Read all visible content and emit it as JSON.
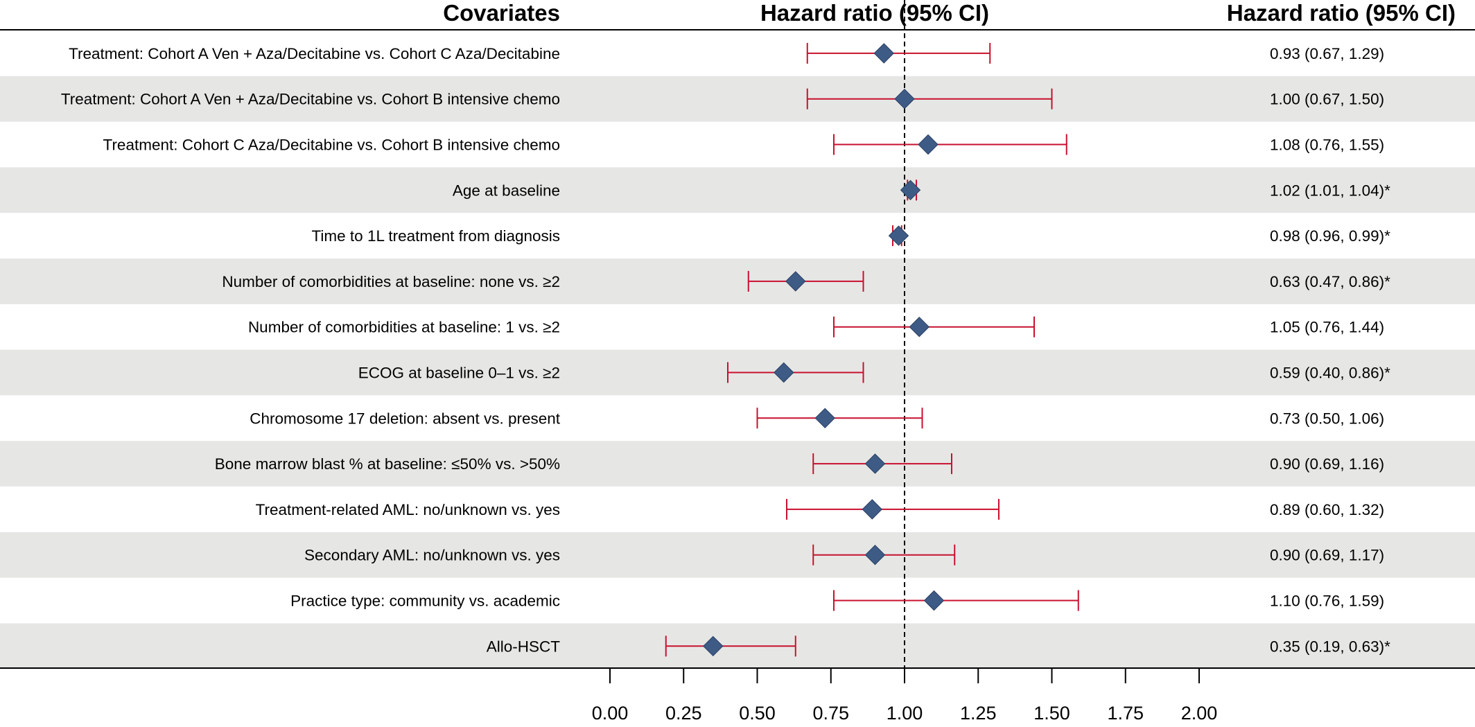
{
  "headers": {
    "covariates": "Covariates",
    "plot": "Hazard ratio (95% CI)",
    "values": "Hazard ratio (95% CI)"
  },
  "colors": {
    "band": "#e6e7e5",
    "ci_line": "#c8102e",
    "marker": "#3e5b86",
    "marker_edge": "#2a3f61",
    "reference_line": "#000000"
  },
  "chart_data": {
    "type": "forest",
    "reference_value": 1.0,
    "xlim": [
      0.0,
      2.0
    ],
    "x_ticks": [
      0.0,
      0.25,
      0.5,
      0.75,
      1.0,
      1.25,
      1.5,
      1.75,
      2.0
    ],
    "x_tick_labels": [
      "0.00",
      "0.25",
      "0.50",
      "0.75",
      "1.00",
      "1.25",
      "1.50",
      "1.75",
      "2.00"
    ],
    "rows": [
      {
        "label": "Treatment: Cohort A Ven + Aza/Decitabine vs. Cohort C Aza/Decitabine",
        "hr": 0.93,
        "lower": 0.67,
        "upper": 1.29,
        "text": "0.93 (0.67, 1.29)"
      },
      {
        "label": "Treatment: Cohort A Ven + Aza/Decitabine vs. Cohort B intensive chemo",
        "hr": 1.0,
        "lower": 0.67,
        "upper": 1.5,
        "text": "1.00 (0.67, 1.50)"
      },
      {
        "label": "Treatment: Cohort C Aza/Decitabine vs. Cohort B intensive chemo",
        "hr": 1.08,
        "lower": 0.76,
        "upper": 1.55,
        "text": "1.08 (0.76, 1.55)"
      },
      {
        "label": "Age at baseline",
        "hr": 1.02,
        "lower": 1.01,
        "upper": 1.04,
        "text": "1.02 (1.01, 1.04)*"
      },
      {
        "label": "Time to 1L treatment from diagnosis",
        "hr": 0.98,
        "lower": 0.96,
        "upper": 0.99,
        "text": "0.98 (0.96, 0.99)*"
      },
      {
        "label": "Number of comorbidities at baseline: none vs. ≥2",
        "hr": 0.63,
        "lower": 0.47,
        "upper": 0.86,
        "text": "0.63 (0.47, 0.86)*"
      },
      {
        "label": "Number of comorbidities at baseline: 1 vs. ≥2",
        "hr": 1.05,
        "lower": 0.76,
        "upper": 1.44,
        "text": "1.05 (0.76, 1.44)"
      },
      {
        "label": "ECOG at baseline 0–1 vs. ≥2",
        "hr": 0.59,
        "lower": 0.4,
        "upper": 0.86,
        "text": "0.59 (0.40, 0.86)*"
      },
      {
        "label": "Chromosome 17 deletion: absent vs. present",
        "hr": 0.73,
        "lower": 0.5,
        "upper": 1.06,
        "text": "0.73 (0.50, 1.06)"
      },
      {
        "label": "Bone marrow blast % at baseline: ≤50% vs. >50%",
        "hr": 0.9,
        "lower": 0.69,
        "upper": 1.16,
        "text": "0.90 (0.69, 1.16)"
      },
      {
        "label": "Treatment-related AML: no/unknown vs. yes",
        "hr": 0.89,
        "lower": 0.6,
        "upper": 1.32,
        "text": "0.89 (0.60, 1.32)"
      },
      {
        "label": "Secondary AML: no/unknown vs. yes",
        "hr": 0.9,
        "lower": 0.69,
        "upper": 1.17,
        "text": "0.90 (0.69, 1.17)"
      },
      {
        "label": "Practice type: community vs. academic",
        "hr": 1.1,
        "lower": 0.76,
        "upper": 1.59,
        "text": "1.10 (0.76, 1.59)"
      },
      {
        "label": "Allo-HSCT",
        "hr": 0.35,
        "lower": 0.19,
        "upper": 0.63,
        "text": "0.35 (0.19, 0.63)*"
      }
    ]
  }
}
